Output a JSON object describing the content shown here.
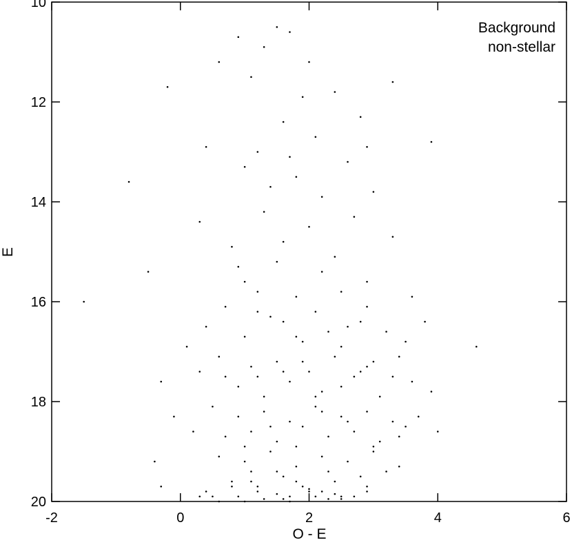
{
  "chart_data": {
    "type": "scatter",
    "xlabel": "O - E",
    "ylabel": "E",
    "annotations": [
      "Background",
      "non-stellar"
    ],
    "xlim": [
      -2,
      6
    ],
    "xticks": [
      -2,
      0,
      2,
      4,
      6
    ],
    "ylim": [
      10,
      20
    ],
    "yticks": [
      10,
      12,
      14,
      16,
      18,
      20
    ],
    "y_inverted": true,
    "color": "#000000",
    "x": [
      1.5,
      1.7,
      1.3,
      2.0,
      1.1,
      2.4,
      -0.2,
      0.6,
      1.9,
      2.8,
      3.3,
      0.9,
      1.6,
      2.1,
      1.2,
      2.6,
      1.8,
      0.4,
      3.0,
      1.4,
      2.2,
      3.9,
      -0.8,
      1.0,
      2.9,
      1.7,
      1.3,
      2.0,
      1.6,
      2.4,
      0.9,
      2.9,
      1.2,
      2.2,
      1.8,
      3.3,
      0.3,
      -0.5,
      1.5,
      2.7,
      0.8,
      3.6,
      2.5,
      1.0,
      0.7,
      1.4,
      2.1,
      2.8,
      3.2,
      1.0,
      1.9,
      2.5,
      0.4,
      3.5,
      1.6,
      2.3,
      -1.5,
      0.1,
      1.2,
      2.9,
      3.8,
      4.6,
      1.8,
      2.6,
      0.6,
      1.1,
      1.5,
      2.0,
      2.4,
      2.9,
      3.3,
      0.9,
      1.7,
      2.2,
      2.7,
      3.1,
      3.6,
      0.3,
      1.3,
      1.9,
      2.5,
      3.0,
      3.9,
      -0.3,
      1.6,
      2.1,
      0.7,
      2.8,
      3.4,
      1.2,
      0.5,
      0.9,
      1.3,
      1.7,
      2.1,
      2.5,
      2.9,
      3.3,
      3.7,
      0.7,
      1.1,
      1.5,
      1.9,
      2.3,
      2.7,
      3.1,
      3.5,
      0.2,
      1.0,
      1.8,
      2.6,
      3.4,
      -0.1,
      4.0,
      1.4,
      2.2,
      3.0,
      0.6,
      1.0,
      1.4,
      1.8,
      2.2,
      2.6,
      3.0,
      3.4,
      0.8,
      1.2,
      1.6,
      2.0,
      2.4,
      2.8,
      3.2,
      0.4,
      1.5,
      2.3,
      2.9,
      -0.4,
      1.7,
      2.5,
      1.1,
      0.6,
      0.9,
      1.3,
      1.7,
      2.1,
      2.5,
      2.9,
      0.8,
      1.2,
      1.6,
      2.0,
      2.4,
      2.7,
      1.0,
      1.5,
      1.9,
      2.3,
      0.5,
      1.1,
      1.8,
      2.2,
      -0.3,
      0.3
    ],
    "values": [
      10.5,
      10.6,
      10.9,
      11.2,
      11.5,
      11.8,
      11.7,
      11.2,
      11.9,
      12.3,
      11.6,
      10.7,
      12.4,
      12.7,
      13.0,
      13.2,
      13.5,
      12.9,
      13.8,
      13.7,
      13.9,
      12.8,
      13.6,
      13.3,
      12.9,
      13.1,
      14.2,
      14.5,
      14.8,
      15.1,
      15.3,
      15.6,
      15.8,
      15.4,
      15.9,
      14.7,
      14.4,
      15.4,
      15.2,
      14.3,
      14.9,
      15.9,
      15.8,
      15.6,
      16.1,
      16.3,
      16.2,
      16.4,
      16.6,
      16.7,
      16.8,
      16.9,
      16.5,
      16.8,
      16.4,
      16.6,
      16.0,
      16.9,
      16.2,
      16.1,
      16.4,
      16.9,
      16.7,
      16.5,
      17.1,
      17.3,
      17.2,
      17.4,
      17.1,
      17.3,
      17.5,
      17.7,
      17.6,
      17.8,
      17.5,
      17.9,
      17.6,
      17.4,
      17.9,
      17.2,
      17.7,
      17.2,
      17.8,
      17.6,
      17.4,
      17.9,
      17.5,
      17.4,
      17.1,
      17.5,
      18.1,
      18.3,
      18.2,
      18.4,
      18.1,
      18.3,
      18.2,
      18.4,
      18.3,
      18.7,
      18.6,
      18.8,
      18.5,
      18.7,
      18.6,
      18.8,
      18.5,
      18.6,
      18.9,
      18.9,
      18.4,
      18.7,
      18.3,
      18.6,
      18.5,
      18.2,
      18.9,
      19.1,
      19.2,
      19.0,
      19.3,
      19.1,
      19.2,
      19.0,
      19.3,
      19.6,
      19.7,
      19.5,
      19.8,
      19.6,
      19.5,
      19.4,
      19.8,
      19.4,
      19.4,
      19.7,
      19.2,
      19.9,
      19.9,
      19.4,
      20.0,
      19.9,
      19.95,
      20.0,
      19.9,
      19.95,
      19.8,
      19.7,
      19.8,
      19.95,
      19.75,
      19.85,
      19.9,
      20.0,
      19.85,
      19.7,
      19.95,
      19.9,
      19.6,
      19.6,
      19.8,
      19.7,
      19.9
    ]
  }
}
